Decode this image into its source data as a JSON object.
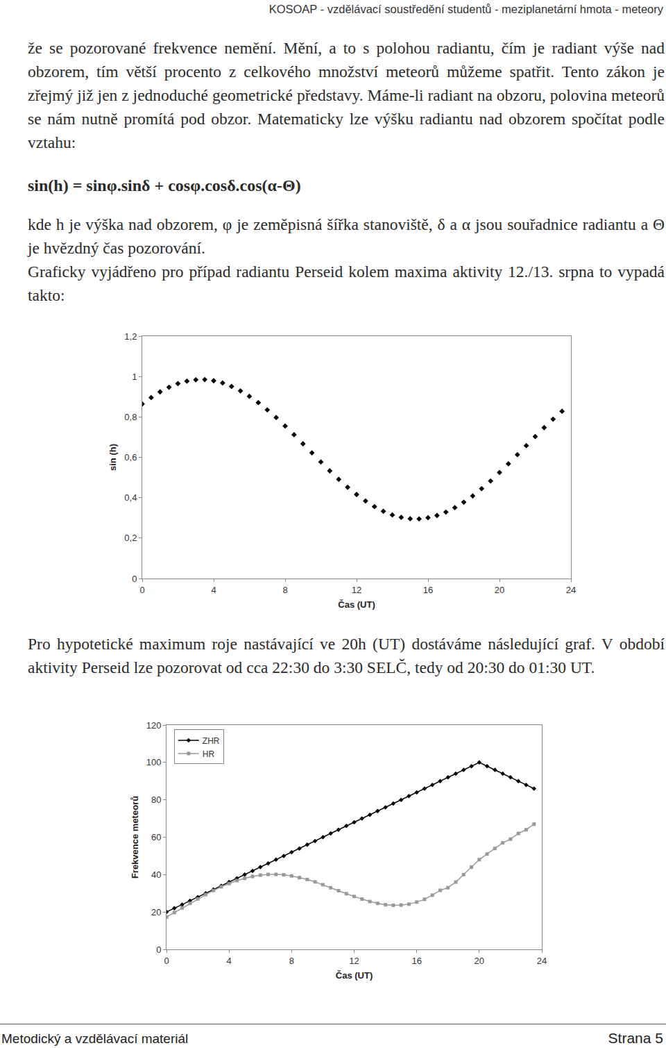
{
  "header": "KOSOAP - vzdělávací soustředění studentů - meziplanetární hmota - meteory",
  "paragraph_1": "že se pozorované frekvence nemění. Mění, a to s polohou radiantu, čím je radiant výše nad obzorem, tím větší procento z celkového množství meteorů můžeme spatřit. Tento zákon je zřejmý již jen z jednoduché geometrické představy. Máme-li radiant na obzoru, polovina meteorů se nám nutně promítá pod obzor. Matematicky lze výšku radiantu nad obzorem spočítat podle vztahu:",
  "formula": "sin(h) = sinφ.sinδ + cosφ.cosδ.cos(α-Θ)",
  "paragraph_2": "kde h je výška nad obzorem, φ je zeměpisná šířka stanoviště, δ a α jsou souřadnice radiantu a Θ je hvězdný čas pozorování.",
  "paragraph_3": "Graficky vyjádřeno pro případ radiantu Perseid kolem maxima aktivity 12./13. srpna to vypadá takto:",
  "paragraph_4": "Pro hypotetické maximum roje nastávající ve 20h (UT) dostáváme následující graf. V období aktivity Perseid lze pozorovat od cca 22:30 do 3:30 SELČ, tedy od 20:30 do 01:30 UT.",
  "chart_data": [
    {
      "type": "scatter",
      "x_label": "Čas (UT)",
      "y_label": "sin (h)",
      "x": [
        0,
        0.5,
        1,
        1.5,
        2,
        2.5,
        3,
        3.5,
        4,
        4.5,
        5,
        5.5,
        6,
        6.5,
        7,
        7.5,
        8,
        8.5,
        9,
        9.5,
        10,
        10.5,
        11,
        11.5,
        12,
        12.5,
        13,
        13.5,
        14,
        14.5,
        15,
        15.5,
        16,
        16.5,
        17,
        17.5,
        18,
        18.5,
        19,
        19.5,
        20,
        20.5,
        21,
        21.5,
        22,
        22.5,
        23,
        23.5
      ],
      "series": [
        {
          "name": "sin (h)",
          "color": "#000000",
          "marker": "diamond",
          "values": [
            0.864,
            0.896,
            0.924,
            0.947,
            0.965,
            0.977,
            0.984,
            0.985,
            0.979,
            0.968,
            0.951,
            0.929,
            0.902,
            0.871,
            0.835,
            0.797,
            0.755,
            0.712,
            0.667,
            0.622,
            0.577,
            0.533,
            0.491,
            0.452,
            0.416,
            0.384,
            0.356,
            0.333,
            0.315,
            0.303,
            0.296,
            0.295,
            0.301,
            0.312,
            0.329,
            0.351,
            0.378,
            0.409,
            0.445,
            0.483,
            0.525,
            0.568,
            0.613,
            0.658,
            0.703,
            0.747,
            0.789,
            0.828
          ]
        }
      ],
      "xlim": [
        0,
        24
      ],
      "xticks": [
        0,
        4,
        8,
        12,
        16,
        20,
        24
      ],
      "ylim": [
        0,
        1.2
      ],
      "yticks": [
        0,
        {
          "value": 0.2,
          "label": "0,2"
        },
        {
          "value": 0.4,
          "label": "0,4"
        },
        {
          "value": 0.6,
          "label": "0,6"
        },
        {
          "value": 0.8,
          "label": "0,8"
        },
        1,
        {
          "value": 1.2,
          "label": "1,2"
        }
      ],
      "grid": false
    },
    {
      "type": "line",
      "x_label": "Čas (UT)",
      "y_label": "Frekvence meteorů",
      "x": [
        0,
        0.5,
        1,
        1.5,
        2,
        2.5,
        3,
        3.5,
        4,
        4.5,
        5,
        5.5,
        6,
        6.5,
        7,
        7.5,
        8,
        8.5,
        9,
        9.5,
        10,
        10.5,
        11,
        11.5,
        12,
        12.5,
        13,
        13.5,
        14,
        14.5,
        15,
        15.5,
        16,
        16.5,
        17,
        17.5,
        18,
        18.5,
        19,
        19.5,
        20,
        20.5,
        21,
        21.5,
        22,
        22.5,
        23,
        23.5
      ],
      "series": [
        {
          "name": "ZHR",
          "color": "#000000",
          "marker": "diamond",
          "line_style": "solid",
          "values": [
            20,
            22,
            24,
            26,
            28,
            30,
            32,
            34,
            36,
            38,
            40,
            42,
            44,
            46,
            48,
            50,
            52,
            54,
            56,
            58,
            60,
            62,
            64,
            66,
            68,
            70,
            72,
            74,
            76,
            78,
            80,
            82,
            84,
            86,
            88,
            90,
            92,
            94,
            96,
            98,
            100,
            98,
            96,
            94,
            92,
            90,
            88,
            86
          ]
        },
        {
          "name": "HR",
          "color": "#999999",
          "marker": "square",
          "line_style": "solid",
          "values": [
            17.3,
            19.7,
            22.2,
            24.6,
            27.0,
            29.3,
            31.5,
            33.5,
            35.2,
            36.8,
            38.0,
            39.0,
            39.7,
            40.1,
            40.1,
            39.9,
            39.3,
            38.4,
            37.4,
            36.1,
            34.6,
            33.0,
            31.4,
            29.8,
            28.3,
            26.9,
            25.6,
            24.6,
            23.9,
            23.6,
            23.7,
            24.2,
            25.3,
            26.8,
            29.0,
            31.6,
            33.0,
            36.0,
            40.0,
            44.0,
            48.0,
            51.0,
            54.0,
            57.0,
            59.0,
            62.0,
            64.0,
            67.0
          ]
        }
      ],
      "xlim": [
        0,
        24
      ],
      "xticks": [
        0,
        4,
        8,
        12,
        16,
        20,
        24
      ],
      "ylim": [
        0,
        120
      ],
      "yticks": [
        0,
        20,
        40,
        60,
        80,
        100,
        120
      ],
      "grid": false,
      "legend": "upper left"
    }
  ],
  "footer": {
    "left": "Metodický a vzdělávací materiál",
    "right": "Strana 5"
  }
}
